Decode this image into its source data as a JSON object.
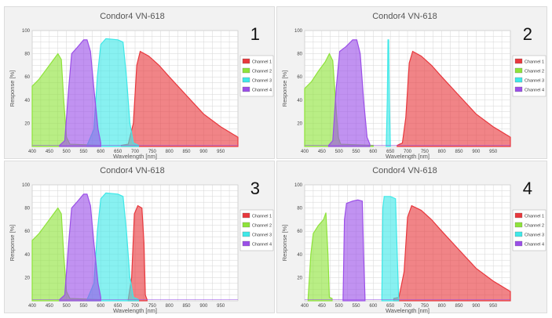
{
  "colors": {
    "channel_1": "#e8383d",
    "channel_2": "#8ee33a",
    "channel_3": "#3fe8e8",
    "channel_4": "#9b4fe8",
    "grid": "#d6d6d6",
    "plot_bg": "#ffffff"
  },
  "chart_data": [
    {
      "type": "area",
      "title": "Condor4 VN-618",
      "panel_label": "1",
      "xlabel": "Wavelength [nm]",
      "ylabel": "Response [%]",
      "xlim": [
        400,
        1000
      ],
      "ylim": [
        0,
        100
      ],
      "xticks": [
        400,
        450,
        500,
        550,
        600,
        650,
        700,
        750,
        800,
        850,
        900,
        950
      ],
      "yticks": [
        20,
        40,
        60,
        80,
        100
      ],
      "grid": true,
      "legend_position": "right",
      "series": [
        {
          "name": "Channel 1",
          "color": "#e8383d",
          "points": [
            [
              660,
              1
            ],
            [
              680,
              2
            ],
            [
              695,
              20
            ],
            [
              705,
              70
            ],
            [
              715,
              82
            ],
            [
              740,
              78
            ],
            [
              770,
              70
            ],
            [
              800,
              60
            ],
            [
              850,
              44
            ],
            [
              900,
              28
            ],
            [
              950,
              17
            ],
            [
              1000,
              8
            ]
          ]
        },
        {
          "name": "Channel 2",
          "color": "#8ee33a",
          "points": [
            [
              400,
              52
            ],
            [
              420,
              58
            ],
            [
              440,
              66
            ],
            [
              460,
              74
            ],
            [
              475,
              80
            ],
            [
              485,
              75
            ],
            [
              492,
              40
            ],
            [
              500,
              8
            ],
            [
              510,
              2
            ],
            [
              600,
              1
            ]
          ]
        },
        {
          "name": "Channel 3",
          "color": "#3fe8e8",
          "points": [
            [
              560,
              1
            ],
            [
              580,
              15
            ],
            [
              590,
              60
            ],
            [
              600,
              88
            ],
            [
              615,
              93
            ],
            [
              650,
              92
            ],
            [
              665,
              90
            ],
            [
              675,
              60
            ],
            [
              685,
              20
            ],
            [
              695,
              3
            ],
            [
              710,
              1
            ]
          ]
        },
        {
          "name": "Channel 4",
          "color": "#9b4fe8",
          "points": [
            [
              480,
              1
            ],
            [
              495,
              5
            ],
            [
              505,
              45
            ],
            [
              515,
              80
            ],
            [
              530,
              85
            ],
            [
              550,
              92
            ],
            [
              560,
              92
            ],
            [
              570,
              82
            ],
            [
              580,
              50
            ],
            [
              592,
              15
            ],
            [
              600,
              3
            ]
          ]
        }
      ]
    },
    {
      "type": "area",
      "title": "Condor4 VN-618",
      "panel_label": "2",
      "xlabel": "Wavelength [nm]",
      "ylabel": "Response [%]",
      "xlim": [
        400,
        1000
      ],
      "ylim": [
        0,
        100
      ],
      "xticks": [
        400,
        450,
        500,
        550,
        600,
        650,
        700,
        750,
        800,
        850,
        900,
        950
      ],
      "yticks": [
        20,
        40,
        60,
        80,
        100
      ],
      "grid": true,
      "legend_position": "right",
      "series": [
        {
          "name": "Channel 1",
          "color": "#e8383d",
          "points": [
            [
              670,
              1
            ],
            [
              685,
              3
            ],
            [
              695,
              25
            ],
            [
              705,
              72
            ],
            [
              715,
              82
            ],
            [
              740,
              78
            ],
            [
              770,
              70
            ],
            [
              800,
              60
            ],
            [
              850,
              44
            ],
            [
              900,
              28
            ],
            [
              950,
              17
            ],
            [
              1000,
              8
            ]
          ]
        },
        {
          "name": "Channel 2",
          "color": "#8ee33a",
          "points": [
            [
              400,
              50
            ],
            [
              420,
              56
            ],
            [
              440,
              65
            ],
            [
              460,
              73
            ],
            [
              472,
              80
            ],
            [
              482,
              74
            ],
            [
              490,
              40
            ],
            [
              498,
              8
            ],
            [
              505,
              2
            ],
            [
              600,
              1
            ]
          ]
        },
        {
          "name": "Channel 3",
          "color": "#3fe8e8",
          "points": [
            [
              638,
              1
            ],
            [
              641,
              40
            ],
            [
              643,
              92
            ],
            [
              645,
              92
            ],
            [
              647,
              40
            ],
            [
              650,
              1
            ]
          ]
        },
        {
          "name": "Channel 4",
          "color": "#9b4fe8",
          "points": [
            [
              470,
              1
            ],
            [
              482,
              5
            ],
            [
              492,
              50
            ],
            [
              502,
              82
            ],
            [
              520,
              86
            ],
            [
              540,
              92
            ],
            [
              552,
              92
            ],
            [
              562,
              80
            ],
            [
              572,
              40
            ],
            [
              582,
              8
            ],
            [
              590,
              2
            ]
          ]
        }
      ]
    },
    {
      "type": "area",
      "title": "Condor4 VN-618",
      "panel_label": "3",
      "xlabel": "Wavelength [nm]",
      "ylabel": "Response [%]",
      "xlim": [
        400,
        1000
      ],
      "ylim": [
        0,
        100
      ],
      "xticks": [
        400,
        450,
        500,
        550,
        600,
        650,
        700,
        750,
        800,
        850,
        900,
        950
      ],
      "yticks": [
        20,
        40,
        60,
        80,
        100
      ],
      "grid": true,
      "legend_position": "right",
      "series": [
        {
          "name": "Channel 1",
          "color": "#e8383d",
          "points": [
            [
              680,
              1
            ],
            [
              690,
              20
            ],
            [
              698,
              75
            ],
            [
              708,
              82
            ],
            [
              720,
              80
            ],
            [
              726,
              50
            ],
            [
              730,
              5
            ],
            [
              735,
              1
            ]
          ]
        },
        {
          "name": "Channel 2",
          "color": "#8ee33a",
          "points": [
            [
              400,
              52
            ],
            [
              420,
              58
            ],
            [
              440,
              66
            ],
            [
              460,
              74
            ],
            [
              475,
              80
            ],
            [
              485,
              75
            ],
            [
              492,
              40
            ],
            [
              500,
              8
            ],
            [
              510,
              2
            ],
            [
              600,
              1
            ]
          ]
        },
        {
          "name": "Channel 3",
          "color": "#3fe8e8",
          "points": [
            [
              560,
              1
            ],
            [
              580,
              15
            ],
            [
              590,
              60
            ],
            [
              600,
              88
            ],
            [
              615,
              93
            ],
            [
              650,
              92
            ],
            [
              665,
              90
            ],
            [
              675,
              60
            ],
            [
              685,
              20
            ],
            [
              695,
              3
            ],
            [
              710,
              1
            ]
          ]
        },
        {
          "name": "Channel 4",
          "color": "#9b4fe8",
          "points": [
            [
              480,
              1
            ],
            [
              495,
              5
            ],
            [
              505,
              45
            ],
            [
              515,
              80
            ],
            [
              530,
              85
            ],
            [
              550,
              92
            ],
            [
              560,
              92
            ],
            [
              570,
              82
            ],
            [
              580,
              50
            ],
            [
              592,
              15
            ],
            [
              600,
              3
            ]
          ]
        }
      ]
    },
    {
      "type": "area",
      "title": "Condor4 VN-618",
      "panel_label": "4",
      "xlabel": "Wavelength [nm]",
      "ylabel": "Response [%]",
      "xlim": [
        400,
        1000
      ],
      "ylim": [
        0,
        100
      ],
      "xticks": [
        400,
        450,
        500,
        550,
        600,
        650,
        700,
        750,
        800,
        850,
        900,
        950
      ],
      "yticks": [
        20,
        40,
        60,
        80,
        100
      ],
      "grid": true,
      "legend_position": "right",
      "series": [
        {
          "name": "Channel 1",
          "color": "#e8383d",
          "points": [
            [
              660,
              2
            ],
            [
              675,
              3
            ],
            [
              690,
              25
            ],
            [
              700,
              72
            ],
            [
              712,
              82
            ],
            [
              740,
              78
            ],
            [
              770,
              70
            ],
            [
              800,
              60
            ],
            [
              850,
              44
            ],
            [
              900,
              28
            ],
            [
              950,
              17
            ],
            [
              1000,
              8
            ]
          ]
        },
        {
          "name": "Channel 2",
          "color": "#8ee33a",
          "points": [
            [
              410,
              2
            ],
            [
              418,
              40
            ],
            [
              425,
              58
            ],
            [
              440,
              65
            ],
            [
              455,
              70
            ],
            [
              462,
              76
            ],
            [
              468,
              40
            ],
            [
              472,
              3
            ],
            [
              480,
              2
            ]
          ]
        },
        {
          "name": "Channel 3",
          "color": "#3fe8e8",
          "points": [
            [
              625,
              2
            ],
            [
              628,
              80
            ],
            [
              632,
              90
            ],
            [
              650,
              90
            ],
            [
              665,
              88
            ],
            [
              670,
              40
            ],
            [
              674,
              3
            ]
          ]
        },
        {
          "name": "Channel 4",
          "color": "#9b4fe8",
          "points": [
            [
              512,
              2
            ],
            [
              516,
              70
            ],
            [
              522,
              84
            ],
            [
              540,
              86
            ],
            [
              555,
              87
            ],
            [
              568,
              86
            ],
            [
              572,
              40
            ],
            [
              576,
              3
            ]
          ]
        }
      ]
    }
  ]
}
